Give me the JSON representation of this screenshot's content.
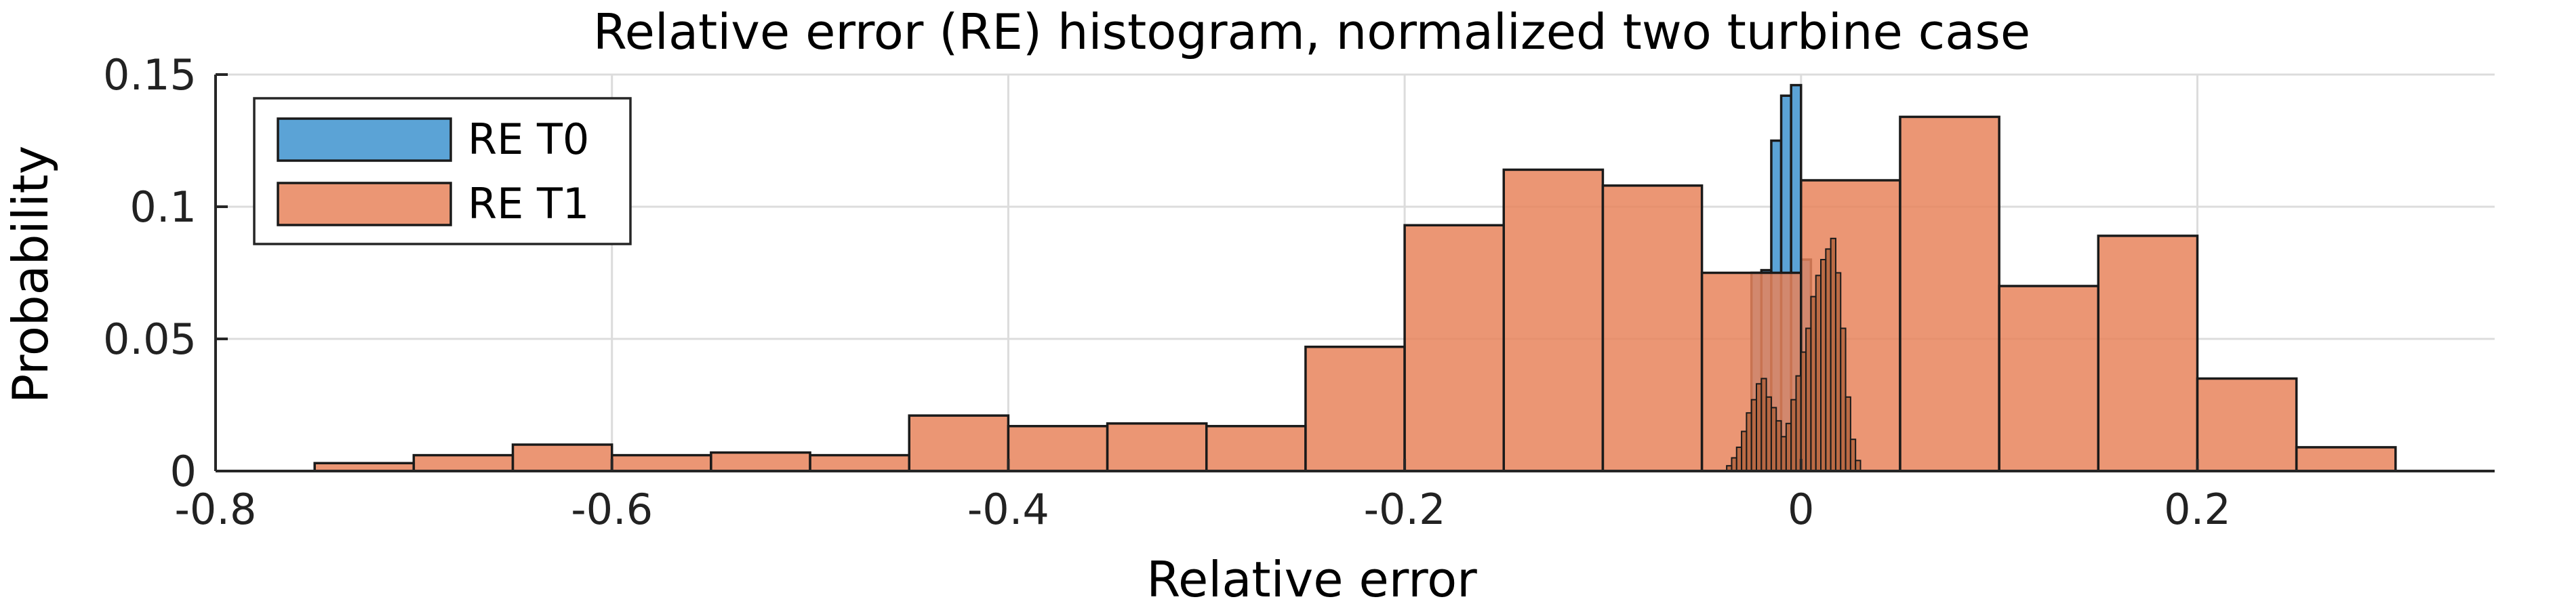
{
  "chart_data": {
    "type": "bar",
    "subtype": "histogram",
    "title": "Relative error (RE) histogram, normalized two turbine case",
    "xlabel": "Relative error",
    "ylabel": "Probability",
    "xlim": [
      -0.8,
      0.35
    ],
    "ylim": [
      0,
      0.15
    ],
    "x_ticks": [
      -0.8,
      -0.6,
      -0.4,
      -0.2,
      0,
      0.2
    ],
    "x_tick_labels": [
      "-0.8",
      "-0.6",
      "-0.4",
      "-0.2",
      "0",
      "0.2"
    ],
    "y_ticks": [
      0,
      0.05,
      0.1,
      0.15
    ],
    "y_tick_labels": [
      "0",
      "0.05",
      "0.1",
      "0.15"
    ],
    "grid": true,
    "legend_position": "top-left",
    "series": [
      {
        "name": "RE T0",
        "color": "#5BA3D6",
        "opacity": 1,
        "bin_width": 0.005,
        "bin_edges_start": -0.025,
        "values": [
          0.075,
          0.076,
          0.125,
          0.142,
          0.146,
          0.08
        ]
      },
      {
        "name": "RE T1",
        "color": "#E8845C",
        "opacity": 0.85,
        "bin_width": 0.05,
        "bin_edges_start": -0.75,
        "values": [
          0.003,
          0.006,
          0.01,
          0.006,
          0.007,
          0.006,
          0.021,
          0.017,
          0.018,
          0.017,
          0.047,
          0.093,
          0.114,
          0.108,
          0.075,
          0.11,
          0.134,
          0.07,
          0.089,
          0.035,
          0.009
        ]
      },
      {
        "name": "",
        "color": "#B0603A",
        "opacity": 0.8,
        "bin_width": 0.0025,
        "bin_edges_start": -0.0375,
        "values": [
          0.002,
          0.005,
          0.009,
          0.015,
          0.022,
          0.027,
          0.033,
          0.035,
          0.028,
          0.024,
          0.019,
          0.013,
          0.018,
          0.027,
          0.036,
          0.045,
          0.054,
          0.066,
          0.074,
          0.08,
          0.084,
          0.088,
          0.075,
          0.054,
          0.028,
          0.012,
          0.004
        ]
      }
    ]
  }
}
